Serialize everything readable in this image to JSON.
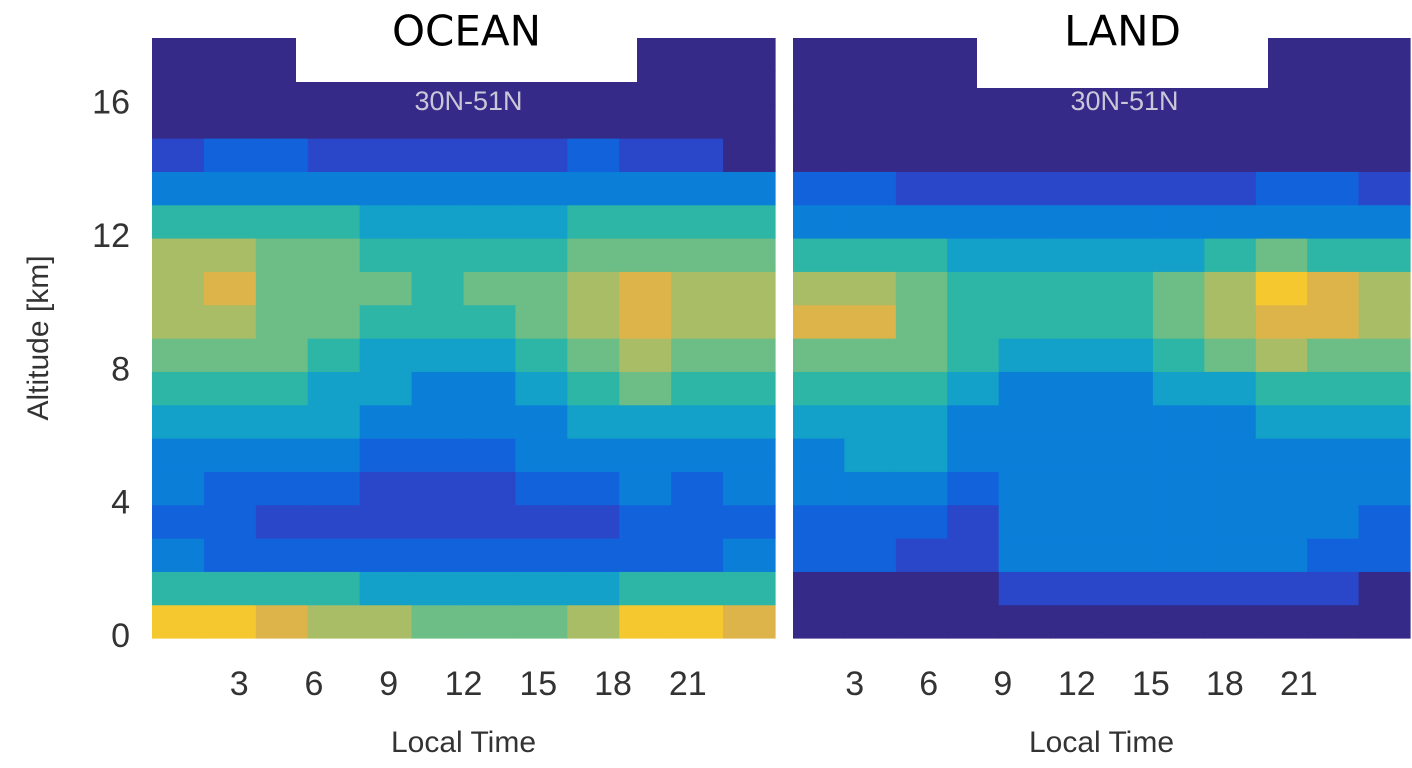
{
  "colormap": [
    "#352a87",
    "#2a46c9",
    "#1262dc",
    "#0b7fd8",
    "#13a0c9",
    "#2db5a6",
    "#6dbd86",
    "#a9bd66",
    "#dcb44a",
    "#f6c82f",
    "#f9e11f"
  ],
  "chart_data": [
    {
      "type": "heatmap",
      "title": "OCEAN",
      "subtitle": "30N-51N",
      "xlabel": "Local Time",
      "ylabel": "Altitude [km]",
      "xlim": [
        -0.5,
        24.5
      ],
      "ylim": [
        0,
        18
      ],
      "xticks": [
        3,
        6,
        9,
        12,
        15,
        18,
        21
      ],
      "yticks": [
        0,
        4,
        8,
        12,
        16
      ],
      "z": [
        [
          9,
          9,
          8,
          7,
          7,
          6,
          6,
          6,
          7,
          9,
          9,
          8
        ],
        [
          5,
          5,
          5,
          5,
          4,
          4,
          4,
          4,
          4,
          5,
          5,
          5
        ],
        [
          3,
          2,
          2,
          2,
          2,
          2,
          2,
          2,
          2,
          2,
          2,
          3
        ],
        [
          2,
          2,
          1,
          1,
          1,
          1,
          1,
          1,
          1,
          2,
          2,
          2
        ],
        [
          3,
          2,
          2,
          2,
          1,
          1,
          1,
          2,
          2,
          3,
          2,
          3
        ],
        [
          3,
          3,
          3,
          3,
          2,
          2,
          2,
          3,
          3,
          3,
          3,
          3
        ],
        [
          4,
          4,
          4,
          4,
          3,
          3,
          3,
          3,
          4,
          4,
          4,
          4
        ],
        [
          5,
          5,
          5,
          4,
          4,
          3,
          3,
          4,
          5,
          6,
          5,
          5
        ],
        [
          6,
          6,
          6,
          5,
          4,
          4,
          4,
          5,
          6,
          7,
          6,
          6
        ],
        [
          7,
          7,
          6,
          6,
          5,
          5,
          5,
          6,
          7,
          8,
          7,
          7
        ],
        [
          7,
          8,
          6,
          6,
          6,
          5,
          6,
          6,
          7,
          8,
          7,
          7
        ],
        [
          7,
          7,
          6,
          6,
          5,
          5,
          5,
          5,
          6,
          6,
          6,
          6
        ],
        [
          5,
          5,
          5,
          5,
          4,
          4,
          4,
          4,
          5,
          5,
          5,
          5
        ],
        [
          3,
          3,
          3,
          3,
          3,
          3,
          3,
          3,
          3,
          3,
          3,
          3
        ],
        [
          1,
          2,
          2,
          1,
          1,
          1,
          1,
          1,
          2,
          1,
          1,
          0
        ],
        [
          0,
          0,
          0,
          0,
          0,
          0,
          0,
          0,
          0,
          0,
          0,
          0
        ],
        [
          0,
          0,
          0,
          0,
          0,
          0,
          0,
          0,
          0,
          0,
          0,
          0
        ],
        [
          0,
          0,
          0,
          0,
          0,
          0,
          0,
          0,
          0,
          0,
          0,
          0
        ]
      ]
    },
    {
      "type": "heatmap",
      "title": "LAND",
      "subtitle": "30N-51N",
      "xlabel": "Local Time",
      "xlim": [
        0.5,
        25.5
      ],
      "ylim": [
        0,
        18
      ],
      "xticks": [
        3,
        6,
        9,
        12,
        15,
        18,
        21
      ],
      "z": [
        [
          0,
          0,
          0,
          0,
          0,
          0,
          0,
          0,
          0,
          0,
          0,
          0
        ],
        [
          0,
          0,
          0,
          0,
          1,
          1,
          1,
          1,
          1,
          1,
          1,
          0
        ],
        [
          2,
          2,
          1,
          1,
          3,
          3,
          3,
          3,
          3,
          3,
          2,
          2
        ],
        [
          2,
          2,
          2,
          1,
          3,
          3,
          3,
          3,
          3,
          3,
          3,
          2
        ],
        [
          3,
          3,
          3,
          2,
          3,
          3,
          3,
          3,
          3,
          3,
          3,
          3
        ],
        [
          3,
          4,
          4,
          3,
          3,
          3,
          3,
          3,
          3,
          3,
          3,
          3
        ],
        [
          4,
          4,
          4,
          3,
          3,
          3,
          3,
          3,
          3,
          4,
          4,
          4
        ],
        [
          5,
          5,
          5,
          4,
          3,
          3,
          3,
          4,
          4,
          5,
          5,
          5
        ],
        [
          6,
          6,
          6,
          5,
          4,
          4,
          4,
          5,
          6,
          7,
          6,
          6
        ],
        [
          8,
          8,
          6,
          5,
          5,
          5,
          5,
          6,
          7,
          8,
          8,
          7
        ],
        [
          7,
          7,
          6,
          5,
          5,
          5,
          5,
          6,
          7,
          9,
          8,
          7
        ],
        [
          5,
          5,
          5,
          4,
          4,
          4,
          4,
          4,
          5,
          6,
          5,
          5
        ],
        [
          3,
          3,
          3,
          3,
          3,
          3,
          3,
          3,
          3,
          3,
          3,
          3
        ],
        [
          2,
          2,
          1,
          1,
          1,
          1,
          1,
          1,
          1,
          2,
          2,
          1
        ],
        [
          0,
          0,
          0,
          0,
          0,
          0,
          0,
          0,
          0,
          0,
          0,
          0
        ],
        [
          0,
          0,
          0,
          0,
          0,
          0,
          0,
          0,
          0,
          0,
          0,
          0
        ],
        [
          0,
          0,
          0,
          0,
          0,
          0,
          0,
          0,
          0,
          0,
          0,
          0
        ],
        [
          0,
          0,
          0,
          0,
          0,
          0,
          0,
          0,
          0,
          0,
          0,
          0
        ]
      ]
    }
  ]
}
